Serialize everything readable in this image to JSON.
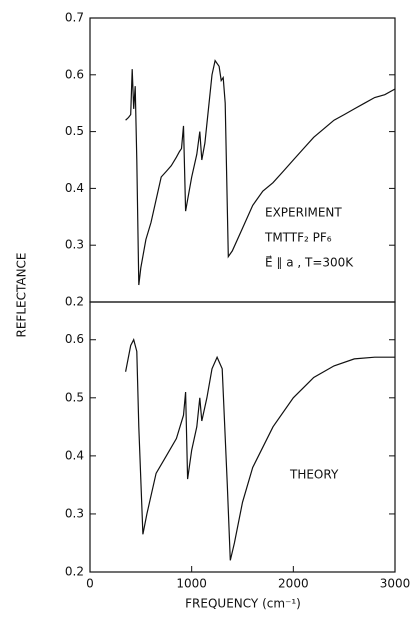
{
  "ylabel": "REFLECTANCE",
  "chart_data": [
    {
      "type": "line",
      "xlim": [
        0,
        3000
      ],
      "ylim": [
        0.2,
        0.7
      ],
      "yticks": [
        0.2,
        0.3,
        0.4,
        0.5,
        0.6,
        0.7
      ],
      "annotations": [
        "EXPERIMENT",
        "TMTTF₂ PF₆",
        "E⃗ ∥ a , T=300K"
      ],
      "x": [
        350,
        380,
        400,
        415,
        430,
        445,
        460,
        480,
        500,
        550,
        600,
        650,
        700,
        750,
        800,
        850,
        880,
        900,
        920,
        940,
        960,
        1000,
        1050,
        1080,
        1100,
        1130,
        1200,
        1230,
        1270,
        1290,
        1310,
        1330,
        1360,
        1400,
        1500,
        1600,
        1700,
        1800,
        1900,
        2000,
        2100,
        2200,
        2300,
        2400,
        2500,
        2600,
        2700,
        2800,
        2900,
        3000
      ],
      "series": [
        {
          "color": "#111111",
          "values": [
            0.52,
            0.525,
            0.53,
            0.61,
            0.54,
            0.58,
            0.45,
            0.23,
            0.26,
            0.31,
            0.34,
            0.38,
            0.42,
            0.43,
            0.44,
            0.455,
            0.465,
            0.47,
            0.51,
            0.36,
            0.38,
            0.42,
            0.46,
            0.5,
            0.45,
            0.48,
            0.6,
            0.625,
            0.615,
            0.59,
            0.595,
            0.55,
            0.28,
            0.29,
            0.33,
            0.37,
            0.395,
            0.41,
            0.43,
            0.45,
            0.47,
            0.49,
            0.505,
            0.52,
            0.53,
            0.54,
            0.55,
            0.56,
            0.565,
            0.575
          ]
        }
      ]
    },
    {
      "type": "line",
      "xlim": [
        0,
        3000
      ],
      "xticks": [
        0,
        1000,
        2000,
        3000
      ],
      "ylim": [
        0.2,
        0.665
      ],
      "yticks": [
        0.2,
        0.3,
        0.4,
        0.5,
        0.6
      ],
      "xlabel": "FREQUENCY (cm⁻¹)",
      "annotations": [
        "THEORY"
      ],
      "x": [
        350,
        400,
        430,
        460,
        480,
        520,
        560,
        650,
        750,
        850,
        920,
        940,
        960,
        1000,
        1050,
        1080,
        1100,
        1150,
        1200,
        1250,
        1300,
        1350,
        1380,
        1420,
        1500,
        1600,
        1800,
        2000,
        2200,
        2400,
        2600,
        2800,
        3000
      ],
      "series": [
        {
          "color": "#111111",
          "values": [
            0.545,
            0.59,
            0.6,
            0.58,
            0.45,
            0.265,
            0.3,
            0.37,
            0.4,
            0.43,
            0.47,
            0.51,
            0.36,
            0.41,
            0.45,
            0.5,
            0.46,
            0.5,
            0.55,
            0.57,
            0.55,
            0.35,
            0.22,
            0.25,
            0.32,
            0.38,
            0.45,
            0.5,
            0.535,
            0.555,
            0.567,
            0.57,
            0.57
          ]
        }
      ]
    }
  ]
}
